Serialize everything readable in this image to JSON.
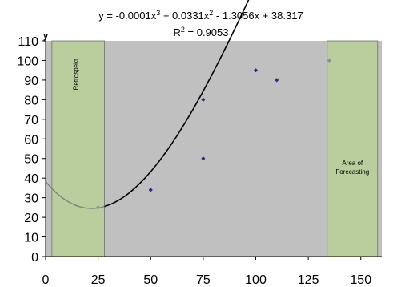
{
  "chart_data": {
    "type": "scatter",
    "title_line1": "y = -0.0001x",
    "title_sup1": "3",
    "title_mid": " + 0.0331x",
    "title_sup2": "2",
    "title_end": " - 1.3056x + 38.317",
    "r2_prefix": "R",
    "r2_sup": "2",
    "r2_value": " = 0.9053",
    "ylabel": "y",
    "xlim": [
      0,
      160
    ],
    "ylim": [
      0,
      110
    ],
    "xticks": [
      0,
      25,
      50,
      75,
      100,
      125,
      150
    ],
    "yticks": [
      0,
      10,
      20,
      30,
      40,
      50,
      60,
      70,
      80,
      90,
      100,
      110
    ],
    "grid": false,
    "points": [
      {
        "x": 25,
        "y": 25,
        "color": "#8b8ba8"
      },
      {
        "x": 50,
        "y": 34,
        "color": "#2a2a8c"
      },
      {
        "x": 75,
        "y": 50,
        "color": "#2a2a8c"
      },
      {
        "x": 75,
        "y": 80,
        "color": "#2a2a8c"
      },
      {
        "x": 100,
        "y": 95,
        "color": "#2a2a8c"
      },
      {
        "x": 110,
        "y": 90,
        "color": "#2a2a8c"
      },
      {
        "x": 135,
        "y": 100,
        "color": "#8b8ba8"
      }
    ],
    "trendline": {
      "coefficients": [
        -0.0001,
        0.0331,
        -1.3056,
        38.317
      ],
      "x_range": [
        0,
        160
      ]
    },
    "shaded_regions": [
      {
        "x_range": [
          3,
          28
        ],
        "label": "Retrospekt"
      },
      {
        "x_range": [
          134,
          158
        ],
        "label": "Area of Forecasting"
      }
    ],
    "colors": {
      "plot_bg": "#c0c0c0",
      "region_fill": "#b9ce9c",
      "trend_dark": "#000000",
      "trend_light": "#808080"
    }
  }
}
